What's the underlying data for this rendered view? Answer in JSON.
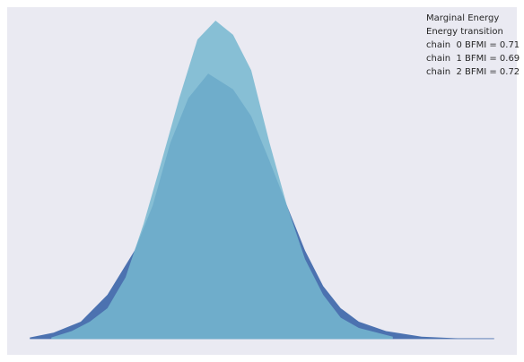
{
  "chart_data": {
    "type": "area",
    "xlim": [
      -4,
      5
    ],
    "ylim": [
      -0.02,
      0.42
    ],
    "series": [
      {
        "name": "Marginal Energy",
        "color": "#4c72b0",
        "x": [
          -3.6,
          -3.18,
          -2.7,
          -2.23,
          -1.75,
          -1.43,
          -1.12,
          -0.8,
          -0.45,
          -0.01,
          0.31,
          0.63,
          0.94,
          1.26,
          1.58,
          1.89,
          2.21,
          2.69,
          3.32,
          3.95,
          4.6
        ],
        "values": [
          0.002,
          0.008,
          0.022,
          0.056,
          0.112,
          0.169,
          0.248,
          0.305,
          0.336,
          0.316,
          0.282,
          0.226,
          0.169,
          0.112,
          0.067,
          0.039,
          0.022,
          0.01,
          0.003,
          0.001,
          0.001
        ]
      },
      {
        "name": "Energy transition",
        "color": "#76b7d0",
        "x": [
          -3.22,
          -2.86,
          -2.54,
          -2.23,
          -1.91,
          -1.59,
          -1.27,
          -0.96,
          -0.64,
          -0.32,
          -0.01,
          0.31,
          0.63,
          0.94,
          1.26,
          1.58,
          1.89,
          2.21,
          2.81
        ],
        "values": [
          0.002,
          0.01,
          0.022,
          0.039,
          0.078,
          0.146,
          0.226,
          0.305,
          0.379,
          0.403,
          0.385,
          0.34,
          0.249,
          0.169,
          0.101,
          0.056,
          0.027,
          0.014,
          0.003
        ]
      }
    ],
    "legend_notes": [
      "chain  0 BFMI = 0.71",
      "chain  1 BFMI = 0.69",
      "chain  2 BFMI = 0.72"
    ],
    "background": "#eaeaf2",
    "legend": "upper right"
  }
}
